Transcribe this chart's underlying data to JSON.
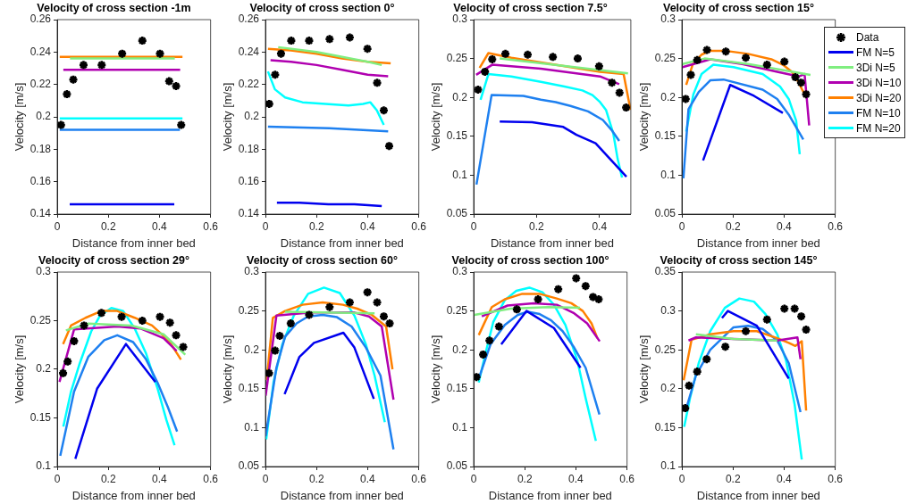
{
  "chart_data": [
    {
      "type": "line",
      "title": "Velocity of cross section -1m",
      "xlabel": "Distance from inner bed",
      "ylabel": "Velocity [m/s]",
      "xlim": [
        0,
        0.6
      ],
      "xticks": [
        0,
        0.2,
        0.4,
        0.6
      ],
      "ylim": [
        0.14,
        0.26
      ],
      "yticks": [
        0.14,
        0.16,
        0.18,
        0.2,
        0.22,
        0.24,
        0.26
      ],
      "series": [
        {
          "type": "scatter",
          "marker": "cross",
          "color": "#000000",
          "x": [
            0.015,
            0.038,
            0.063,
            0.103,
            0.174,
            0.254,
            0.333,
            0.402,
            0.438,
            0.465,
            0.485
          ],
          "values": [
            0.195,
            0.214,
            0.223,
            0.232,
            0.232,
            0.239,
            0.247,
            0.239,
            0.222,
            0.219,
            0.195
          ]
        },
        {
          "type": "line",
          "color": "#0000ee",
          "x": [
            0.049,
            0.25,
            0.458
          ],
          "values": [
            0.146,
            0.146,
            0.146
          ]
        },
        {
          "type": "line",
          "color": "#80ee80",
          "x": [
            0.05,
            0.25,
            0.46
          ],
          "values": [
            0.236,
            0.236,
            0.236
          ]
        },
        {
          "type": "line",
          "color": "#b000b0",
          "x": [
            0.024,
            0.25,
            0.481
          ],
          "values": [
            0.229,
            0.229,
            0.229
          ]
        },
        {
          "type": "line",
          "color": "#ff8000",
          "x": [
            0.01,
            0.25,
            0.49
          ],
          "values": [
            0.237,
            0.237,
            0.237
          ]
        },
        {
          "type": "line",
          "color": "#1e80f0",
          "x": [
            0.01,
            0.25,
            0.48
          ],
          "values": [
            0.192,
            0.192,
            0.192
          ]
        },
        {
          "type": "line",
          "color": "#00ffff",
          "x": [
            0.01,
            0.25,
            0.49
          ],
          "values": [
            0.199,
            0.199,
            0.199
          ]
        }
      ]
    },
    {
      "type": "line",
      "title": "Velocity of cross section 0°",
      "xlabel": "Distance from inner bed",
      "ylabel": "Velocity [m/s]",
      "xlim": [
        0,
        0.6
      ],
      "xticks": [
        0,
        0.2,
        0.4,
        0.6
      ],
      "ylim": [
        0.14,
        0.26
      ],
      "yticks": [
        0.14,
        0.16,
        0.18,
        0.2,
        0.22,
        0.24,
        0.26
      ],
      "series": [
        {
          "type": "scatter",
          "marker": "cross",
          "color": "#000000",
          "x": [
            0.015,
            0.038,
            0.061,
            0.101,
            0.171,
            0.251,
            0.33,
            0.399,
            0.437,
            0.463,
            0.484
          ],
          "values": [
            0.208,
            0.226,
            0.239,
            0.247,
            0.247,
            0.248,
            0.249,
            0.242,
            0.221,
            0.204,
            0.182
          ]
        },
        {
          "type": "line",
          "color": "#0000ee",
          "x": [
            0.045,
            0.133,
            0.246,
            0.348,
            0.455
          ],
          "values": [
            0.147,
            0.147,
            0.146,
            0.146,
            0.145
          ]
        },
        {
          "type": "line",
          "color": "#80ee80",
          "x": [
            0.05,
            0.2,
            0.3,
            0.4,
            0.455
          ],
          "values": [
            0.243,
            0.24,
            0.237,
            0.234,
            0.232
          ]
        },
        {
          "type": "line",
          "color": "#b000b0",
          "x": [
            0.02,
            0.1,
            0.2,
            0.3,
            0.4,
            0.48
          ],
          "values": [
            0.235,
            0.234,
            0.232,
            0.229,
            0.226,
            0.225
          ]
        },
        {
          "type": "line",
          "color": "#ff8000",
          "x": [
            0.01,
            0.1,
            0.2,
            0.3,
            0.4,
            0.49
          ],
          "values": [
            0.242,
            0.241,
            0.239,
            0.236,
            0.234,
            0.233
          ]
        },
        {
          "type": "line",
          "color": "#1e80f0",
          "x": [
            0.01,
            0.25,
            0.48
          ],
          "values": [
            0.194,
            0.193,
            0.191
          ]
        },
        {
          "type": "line",
          "color": "#00ffff",
          "x": [
            0.01,
            0.037,
            0.077,
            0.145,
            0.235,
            0.325,
            0.382,
            0.41,
            0.436,
            0.463
          ],
          "values": [
            0.228,
            0.217,
            0.212,
            0.209,
            0.208,
            0.207,
            0.208,
            0.209,
            0.204,
            0.195
          ]
        }
      ]
    },
    {
      "type": "line",
      "title": "Velocity of cross section 7.5°",
      "xlabel": "Distance from inner bed",
      "ylabel": "Velocity [m/s]",
      "xlim": [
        0,
        0.5
      ],
      "xticks": [
        0,
        0.2,
        0.4
      ],
      "ylim": [
        0.05,
        0.3
      ],
      "yticks": [
        0.05,
        0.1,
        0.15,
        0.2,
        0.25,
        0.3
      ],
      "series": [
        {
          "type": "scatter",
          "marker": "cross",
          "color": "#000000",
          "x": [
            0.014,
            0.036,
            0.059,
            0.101,
            0.172,
            0.252,
            0.331,
            0.399,
            0.44,
            0.464,
            0.485
          ],
          "values": [
            0.21,
            0.233,
            0.249,
            0.256,
            0.255,
            0.252,
            0.25,
            0.24,
            0.219,
            0.206,
            0.187
          ]
        },
        {
          "type": "line",
          "color": "#0000ee",
          "x": [
            0.083,
            0.186,
            0.285,
            0.327,
            0.388,
            0.486
          ],
          "values": [
            0.169,
            0.168,
            0.162,
            0.152,
            0.141,
            0.098
          ]
        },
        {
          "type": "line",
          "color": "#80ee80",
          "x": [
            0.083,
            0.491
          ],
          "values": [
            0.25,
            0.231
          ]
        },
        {
          "type": "line",
          "color": "#b000b0",
          "x": [
            0.008,
            0.059,
            0.214,
            0.402,
            0.463
          ],
          "values": [
            0.229,
            0.242,
            0.237,
            0.227,
            0.217
          ]
        },
        {
          "type": "line",
          "color": "#ff8000",
          "x": [
            0.019,
            0.047,
            0.12,
            0.214,
            0.308,
            0.402,
            0.477,
            0.499
          ],
          "values": [
            0.238,
            0.257,
            0.251,
            0.245,
            0.239,
            0.233,
            0.23,
            0.184
          ]
        },
        {
          "type": "line",
          "color": "#1e80f0",
          "x": [
            0.009,
            0.057,
            0.158,
            0.214,
            0.261,
            0.308,
            0.364,
            0.411,
            0.439,
            0.463
          ],
          "values": [
            0.088,
            0.203,
            0.202,
            0.197,
            0.194,
            0.189,
            0.182,
            0.171,
            0.158,
            0.144
          ]
        },
        {
          "type": "line",
          "color": "#00ffff",
          "x": [
            0.022,
            0.047,
            0.12,
            0.214,
            0.289,
            0.346,
            0.378,
            0.402,
            0.421,
            0.444,
            0.458,
            0.472
          ],
          "values": [
            0.197,
            0.23,
            0.227,
            0.22,
            0.214,
            0.209,
            0.203,
            0.194,
            0.184,
            0.154,
            0.121,
            0.097
          ]
        }
      ]
    },
    {
      "type": "line",
      "title": "Velocity of cross section 15°",
      "xlabel": "Distance from inner bed",
      "ylabel": "Velocity [m/s]",
      "xlim": [
        0,
        0.6
      ],
      "xticks": [
        0,
        0.2,
        0.4,
        0.6
      ],
      "ylim": [
        0.05,
        0.3
      ],
      "yticks": [
        0.05,
        0.1,
        0.15,
        0.2,
        0.25,
        0.3
      ],
      "legend": "top right",
      "series": [
        {
          "type": "scatter",
          "marker": "cross",
          "name": "Data",
          "color": "#000000",
          "x": [
            0.015,
            0.035,
            0.06,
            0.098,
            0.172,
            0.25,
            0.333,
            0.401,
            0.444,
            0.466,
            0.486
          ],
          "values": [
            0.198,
            0.229,
            0.248,
            0.261,
            0.259,
            0.251,
            0.242,
            0.246,
            0.226,
            0.219,
            0.204
          ]
        },
        {
          "type": "line",
          "name": "FM N=5",
          "color": "#0000ee",
          "x": [
            0.083,
            0.189,
            0.282,
            0.395
          ],
          "values": [
            0.119,
            0.216,
            0.202,
            0.18
          ]
        },
        {
          "type": "line",
          "name": "3Di N=5",
          "color": "#80ee80",
          "x": [
            0.003,
            0.089,
            0.259,
            0.503
          ],
          "values": [
            0.243,
            0.25,
            0.243,
            0.229
          ]
        },
        {
          "type": "line",
          "name": "3Di N=10",
          "color": "#b000b0",
          "x": [
            0.003,
            0.111,
            0.236,
            0.373,
            0.458,
            0.48,
            0.498
          ],
          "values": [
            0.239,
            0.249,
            0.243,
            0.233,
            0.227,
            0.23,
            0.164
          ]
        },
        {
          "type": "line",
          "name": "3Di N=20",
          "color": "#ff8000",
          "x": [
            0.017,
            0.043,
            0.077,
            0.111,
            0.168,
            0.259,
            0.35,
            0.395,
            0.43,
            0.452,
            0.486
          ],
          "values": [
            0.216,
            0.243,
            0.255,
            0.26,
            0.26,
            0.256,
            0.249,
            0.242,
            0.233,
            0.222,
            0.2
          ]
        },
        {
          "type": "line",
          "name": "FM N=10",
          "color": "#1e80f0",
          "x": [
            0.006,
            0.026,
            0.066,
            0.111,
            0.163,
            0.316,
            0.373,
            0.418,
            0.475
          ],
          "values": [
            0.096,
            0.185,
            0.207,
            0.222,
            0.223,
            0.21,
            0.198,
            0.178,
            0.146
          ]
        },
        {
          "type": "line",
          "name": "FM N=20",
          "color": "#00ffff",
          "x": [
            0.017,
            0.045,
            0.077,
            0.123,
            0.202,
            0.316,
            0.384,
            0.418,
            0.447,
            0.461
          ],
          "values": [
            0.156,
            0.204,
            0.23,
            0.242,
            0.239,
            0.23,
            0.214,
            0.198,
            0.17,
            0.127
          ]
        }
      ]
    },
    {
      "type": "line",
      "title": "Velocity of cross section 29°",
      "xlabel": "Distance from inner bed",
      "ylabel": "Velocity [m/s]",
      "xlim": [
        0,
        0.6
      ],
      "xticks": [
        0,
        0.2,
        0.4,
        0.6
      ],
      "ylim": [
        0.1,
        0.3
      ],
      "yticks": [
        0.1,
        0.15,
        0.2,
        0.25,
        0.3
      ],
      "series": [
        {
          "type": "scatter",
          "marker": "cross",
          "color": "#000000",
          "x": [
            0.023,
            0.041,
            0.066,
            0.105,
            0.173,
            0.252,
            0.333,
            0.402,
            0.441,
            0.465,
            0.493
          ],
          "values": [
            0.196,
            0.208,
            0.229,
            0.245,
            0.258,
            0.254,
            0.25,
            0.254,
            0.248,
            0.235,
            0.223
          ]
        },
        {
          "type": "line",
          "color": "#0000ee",
          "x": [
            0.071,
            0.156,
            0.269,
            0.384
          ],
          "values": [
            0.108,
            0.18,
            0.226,
            0.187
          ]
        },
        {
          "type": "line",
          "color": "#80ee80",
          "x": [
            0.034,
            0.122,
            0.291,
            0.416,
            0.501
          ],
          "values": [
            0.24,
            0.247,
            0.245,
            0.236,
            0.215
          ]
        },
        {
          "type": "line",
          "color": "#b000b0",
          "x": [
            0.009,
            0.066,
            0.235,
            0.325,
            0.416,
            0.467
          ],
          "values": [
            0.187,
            0.241,
            0.244,
            0.242,
            0.232,
            0.219
          ]
        },
        {
          "type": "line",
          "color": "#ff8000",
          "x": [
            0.023,
            0.054,
            0.111,
            0.173,
            0.235,
            0.303,
            0.371,
            0.438,
            0.484
          ],
          "values": [
            0.226,
            0.245,
            0.253,
            0.26,
            0.26,
            0.253,
            0.245,
            0.229,
            0.21
          ]
        },
        {
          "type": "line",
          "color": "#1e80f0",
          "x": [
            0.012,
            0.066,
            0.122,
            0.184,
            0.235,
            0.297,
            0.348,
            0.393,
            0.433,
            0.469
          ],
          "values": [
            0.111,
            0.177,
            0.213,
            0.23,
            0.235,
            0.228,
            0.21,
            0.186,
            0.161,
            0.136
          ]
        },
        {
          "type": "line",
          "color": "#00ffff",
          "x": [
            0.024,
            0.054,
            0.088,
            0.133,
            0.167,
            0.212,
            0.258,
            0.303,
            0.348,
            0.393,
            0.427,
            0.459
          ],
          "values": [
            0.141,
            0.177,
            0.206,
            0.239,
            0.255,
            0.263,
            0.26,
            0.242,
            0.216,
            0.18,
            0.148,
            0.122
          ]
        }
      ]
    },
    {
      "type": "line",
      "title": "Velocity of cross section 60°",
      "xlabel": "Distance from inner bed",
      "ylabel": "Velocity [m/s]",
      "xlim": [
        0,
        0.6
      ],
      "xticks": [
        0,
        0.2,
        0.4,
        0.6
      ],
      "ylim": [
        0.05,
        0.3
      ],
      "yticks": [
        0.05,
        0.1,
        0.15,
        0.2,
        0.25,
        0.3
      ],
      "series": [
        {
          "type": "scatter",
          "marker": "cross",
          "color": "#000000",
          "x": [
            0.014,
            0.038,
            0.056,
            0.099,
            0.171,
            0.251,
            0.33,
            0.399,
            0.437,
            0.463,
            0.486
          ],
          "values": [
            0.17,
            0.199,
            0.218,
            0.234,
            0.245,
            0.255,
            0.261,
            0.274,
            0.261,
            0.243,
            0.234
          ]
        },
        {
          "type": "line",
          "color": "#0000ee",
          "x": [
            0.075,
            0.133,
            0.19,
            0.305,
            0.348,
            0.424
          ],
          "values": [
            0.143,
            0.191,
            0.209,
            0.222,
            0.203,
            0.137
          ]
        },
        {
          "type": "line",
          "color": "#80ee80",
          "x": [
            0.077,
            0.427
          ],
          "values": [
            0.249,
            0.247
          ]
        },
        {
          "type": "line",
          "color": "#b000b0",
          "x": [
            0.001,
            0.043,
            0.179,
            0.348,
            0.405,
            0.455,
            0.501
          ],
          "values": [
            0.141,
            0.244,
            0.248,
            0.248,
            0.243,
            0.23,
            0.136
          ]
        },
        {
          "type": "line",
          "color": "#ff8000",
          "x": [
            0.005,
            0.029,
            0.077,
            0.145,
            0.224,
            0.303,
            0.359,
            0.416,
            0.472,
            0.497
          ],
          "values": [
            0.161,
            0.241,
            0.25,
            0.258,
            0.261,
            0.258,
            0.253,
            0.245,
            0.23,
            0.175
          ]
        },
        {
          "type": "line",
          "color": "#1e80f0",
          "x": [
            0.001,
            0.043,
            0.077,
            0.122,
            0.167,
            0.224,
            0.28,
            0.337,
            0.393,
            0.45,
            0.501
          ],
          "values": [
            0.089,
            0.177,
            0.217,
            0.234,
            0.243,
            0.245,
            0.242,
            0.23,
            0.203,
            0.167,
            0.072
          ]
        },
        {
          "type": "line",
          "color": "#00ffff",
          "x": [
            0.003,
            0.032,
            0.066,
            0.111,
            0.167,
            0.229,
            0.291,
            0.348,
            0.393,
            0.427,
            0.467
          ],
          "values": [
            0.085,
            0.159,
            0.207,
            0.244,
            0.272,
            0.28,
            0.273,
            0.244,
            0.207,
            0.167,
            0.107
          ]
        }
      ]
    },
    {
      "type": "line",
      "title": "Velocity of cross section 100°",
      "xlabel": "Distance from inner bed",
      "ylabel": "Velocity [m/s]",
      "xlim": [
        0,
        0.6
      ],
      "xticks": [
        0,
        0.2,
        0.4,
        0.6
      ],
      "ylim": [
        0.05,
        0.3
      ],
      "yticks": [
        0.05,
        0.1,
        0.15,
        0.2,
        0.25,
        0.3
      ],
      "series": [
        {
          "type": "scatter",
          "marker": "cross",
          "color": "#000000",
          "x": [
            0.011,
            0.037,
            0.062,
            0.099,
            0.169,
            0.252,
            0.331,
            0.401,
            0.438,
            0.467,
            0.489
          ],
          "values": [
            0.165,
            0.194,
            0.212,
            0.23,
            0.252,
            0.265,
            0.278,
            0.292,
            0.282,
            0.268,
            0.265
          ]
        },
        {
          "type": "line",
          "color": "#0000ee",
          "x": [
            0.108,
            0.207,
            0.314,
            0.418
          ],
          "values": [
            0.207,
            0.25,
            0.228,
            0.177
          ]
        },
        {
          "type": "line",
          "color": "#80ee80",
          "x": [
            0.003,
            0.145,
            0.292,
            0.416
          ],
          "values": [
            0.245,
            0.253,
            0.255,
            0.254
          ]
        },
        {
          "type": "line",
          "color": "#b000b0",
          "x": [
            0.032,
            0.133,
            0.235,
            0.325,
            0.393,
            0.444,
            0.493
          ],
          "values": [
            0.243,
            0.257,
            0.26,
            0.258,
            0.247,
            0.234,
            0.211
          ]
        },
        {
          "type": "line",
          "color": "#ff8000",
          "x": [
            0.02,
            0.071,
            0.122,
            0.19,
            0.258,
            0.325,
            0.382,
            0.427,
            0.461,
            0.484
          ],
          "values": [
            0.219,
            0.255,
            0.265,
            0.272,
            0.272,
            0.266,
            0.26,
            0.25,
            0.234,
            0.215
          ]
        },
        {
          "type": "line",
          "color": "#1e80f0",
          "x": [
            0.02,
            0.066,
            0.122,
            0.173,
            0.212,
            0.258,
            0.303,
            0.348,
            0.393,
            0.438,
            0.492
          ],
          "values": [
            0.163,
            0.207,
            0.232,
            0.245,
            0.249,
            0.246,
            0.238,
            0.224,
            0.203,
            0.177,
            0.117
          ]
        },
        {
          "type": "line",
          "color": "#00ffff",
          "x": [
            0.02,
            0.043,
            0.077,
            0.122,
            0.167,
            0.218,
            0.269,
            0.314,
            0.359,
            0.405,
            0.438,
            0.478
          ],
          "values": [
            0.158,
            0.191,
            0.236,
            0.264,
            0.276,
            0.28,
            0.274,
            0.258,
            0.232,
            0.187,
            0.138,
            0.083
          ]
        }
      ]
    },
    {
      "type": "line",
      "title": "Velocity of cross section 145°",
      "xlabel": "Distance from inner bed",
      "ylabel": "Velocity [m/s]",
      "xlim": [
        0,
        0.6
      ],
      "xticks": [
        0,
        0.2,
        0.4,
        0.6
      ],
      "ylim": [
        0.1,
        0.35
      ],
      "yticks": [
        0.1,
        0.15,
        0.2,
        0.25,
        0.3,
        0.35
      ],
      "series": [
        {
          "type": "scatter",
          "marker": "cross",
          "color": "#000000",
          "x": [
            0.013,
            0.028,
            0.06,
            0.097,
            0.17,
            0.25,
            0.333,
            0.401,
            0.441,
            0.467,
            0.486
          ],
          "values": [
            0.175,
            0.204,
            0.222,
            0.238,
            0.254,
            0.274,
            0.289,
            0.303,
            0.303,
            0.293,
            0.276
          ]
        },
        {
          "type": "line",
          "color": "#0000ee",
          "x": [
            0.157,
            0.18,
            0.293,
            0.418
          ],
          "values": [
            0.291,
            0.3,
            0.281,
            0.213
          ]
        },
        {
          "type": "line",
          "color": "#80ee80",
          "x": [
            0.055,
            0.202,
            0.373
          ],
          "values": [
            0.27,
            0.264,
            0.262
          ]
        },
        {
          "type": "line",
          "color": "#b000b0",
          "x": [
            0.026,
            0.055,
            0.202,
            0.373,
            0.452,
            0.464
          ],
          "values": [
            0.262,
            0.266,
            0.264,
            0.262,
            0.266,
            0.238
          ]
        },
        {
          "type": "line",
          "color": "#ff8000",
          "x": [
            0.007,
            0.038,
            0.111,
            0.202,
            0.293,
            0.373,
            0.418,
            0.444,
            0.469,
            0.486
          ],
          "values": [
            0.211,
            0.263,
            0.27,
            0.274,
            0.274,
            0.265,
            0.259,
            0.255,
            0.261,
            0.172
          ]
        },
        {
          "type": "line",
          "color": "#1e80f0",
          "x": [
            0.015,
            0.055,
            0.111,
            0.202,
            0.259,
            0.316,
            0.373,
            0.418,
            0.464
          ],
          "values": [
            0.172,
            0.217,
            0.25,
            0.279,
            0.281,
            0.277,
            0.262,
            0.233,
            0.17
          ]
        },
        {
          "type": "line",
          "color": "#00ffff",
          "x": [
            0.009,
            0.032,
            0.066,
            0.111,
            0.168,
            0.225,
            0.282,
            0.327,
            0.373,
            0.407,
            0.441,
            0.469
          ],
          "values": [
            0.151,
            0.188,
            0.233,
            0.274,
            0.304,
            0.316,
            0.312,
            0.296,
            0.27,
            0.237,
            0.18,
            0.109
          ]
        }
      ]
    }
  ]
}
